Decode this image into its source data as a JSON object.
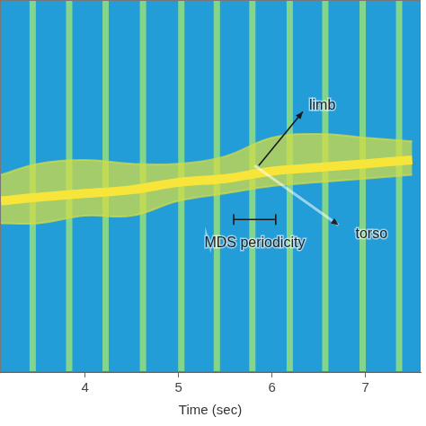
{
  "chart_data": {
    "type": "spectrogram",
    "x_label": "Time (sec)",
    "xlim": [
      3.09,
      7.59
    ],
    "xticks": [
      4,
      5,
      6,
      7
    ],
    "ylim": [
      0,
      1
    ],
    "tick_labels": "x",
    "grid": false,
    "background": "#239dd8",
    "x": [
      3.1,
      3.5,
      4.0,
      4.5,
      5.0,
      5.5,
      6.0,
      6.5,
      7.0,
      7.5
    ],
    "series": [
      {
        "name": "torso",
        "color": "#f7e53a",
        "values": [
          0.46,
          0.47,
          0.48,
          0.49,
          0.51,
          0.52,
          0.54,
          0.55,
          0.56,
          0.57
        ]
      },
      {
        "name": "limb",
        "color": "#d2dc46",
        "upper": [
          0.53,
          0.56,
          0.57,
          0.56,
          0.56,
          0.58,
          0.63,
          0.64,
          0.63,
          0.62
        ],
        "lower": [
          0.4,
          0.4,
          0.42,
          0.42,
          0.46,
          0.48,
          0.5,
          0.51,
          0.52,
          0.53
        ]
      }
    ],
    "stripes": {
      "color": "#84d58c",
      "x": [
        3.44,
        3.83,
        4.22,
        4.62,
        5.03,
        5.41,
        5.79,
        6.19,
        6.57,
        6.97,
        7.36
      ]
    },
    "annotations": [
      {
        "text": "MDS periodicity",
        "x": [
          5.59,
          6.04
        ]
      }
    ]
  }
}
